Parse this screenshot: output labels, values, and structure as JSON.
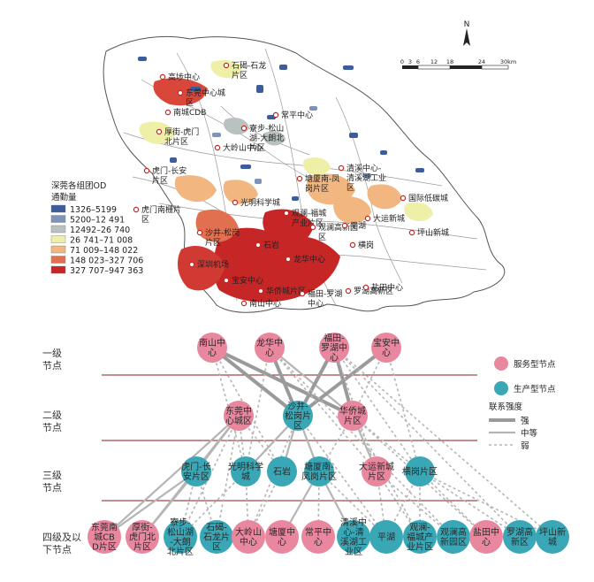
{
  "map": {
    "north_label": "N",
    "scale": {
      "ticks": [
        "0",
        "3",
        "6",
        "12",
        "18",
        "24",
        "30km"
      ]
    },
    "legend": {
      "title_line1": "深莞各组团OD",
      "title_line2": "通勤量",
      "items": [
        {
          "label": "1326–5199",
          "color": "#3e5c9a"
        },
        {
          "label": "5200–12 491",
          "color": "#7f93b7"
        },
        {
          "label": "12492–26 740",
          "color": "#b9c2c0"
        },
        {
          "label": "26 741–71 008",
          "color": "#eef0a8"
        },
        {
          "label": "71 009–148 022",
          "color": "#f2b681"
        },
        {
          "label": "148 023–327 706",
          "color": "#e07050"
        },
        {
          "label": "327 707–947 363",
          "color": "#c72626"
        }
      ]
    },
    "labels": [
      "高埗中心",
      "石碣-石龙片区",
      "东莞中心城区",
      "南城CDB",
      "常平中心",
      "厚街-虎门北片区",
      "寮步-松山湖-大朗北片区",
      "大岭山中心",
      "虎门-长安片区",
      "清溪中心-清溪湖工业区",
      "塘厦南-凤岗片区",
      "国际低碳城",
      "虎门南栅片区",
      "光明科学城",
      "观澜-福城产业片区",
      "观澜高新园区",
      "平湖",
      "大运新城",
      "坪山新城",
      "横岗",
      "沙井-松岗片区",
      "石岩",
      "深圳机场",
      "龙华中心",
      "宝安中心",
      "华侨城片区",
      "福田-罗湖中心",
      "罗湖高新区",
      "盐田中心",
      "南山中心"
    ]
  },
  "network": {
    "tiers": [
      "一级节点",
      "二级节点",
      "三级节点",
      "四级及以下节点"
    ],
    "legend": {
      "service_label": "服务型节点",
      "production_label": "生产型节点",
      "service_color": "#e8879e",
      "production_color": "#3aa7b6",
      "strength_title": "联系强度",
      "strong": "强",
      "medium": "中等",
      "weak": "弱"
    },
    "nodes": {
      "tier1": [
        {
          "id": "nanshan",
          "label": "南山中心",
          "type": "service"
        },
        {
          "id": "longhua",
          "label": "龙华中心",
          "type": "service"
        },
        {
          "id": "futian",
          "label": "福田-罗湖中心",
          "type": "service"
        },
        {
          "id": "baoan",
          "label": "宝安中心",
          "type": "service"
        }
      ],
      "tier2": [
        {
          "id": "dgcenter",
          "label": "东莞中心城区",
          "type": "service"
        },
        {
          "id": "shajing",
          "label": "沙井-松岗片区",
          "type": "production"
        },
        {
          "id": "huaqiao",
          "label": "华侨城片区",
          "type": "service"
        }
      ],
      "tier3": [
        {
          "id": "humen",
          "label": "虎门-长安片区",
          "type": "production"
        },
        {
          "id": "guangming",
          "label": "光明科学城",
          "type": "production"
        },
        {
          "id": "shiyan",
          "label": "石岩",
          "type": "production"
        },
        {
          "id": "tangxia_s",
          "label": "塘厦南-凤岗片区",
          "type": "production"
        },
        {
          "id": "dayun",
          "label": "大运新城片区",
          "type": "service"
        },
        {
          "id": "henggang",
          "label": "横岗片区",
          "type": "production"
        }
      ],
      "tier4": [
        {
          "id": "dgnc",
          "label": "东莞南城CBD片区",
          "type": "service"
        },
        {
          "id": "houjie",
          "label": "厚街-虎门北片区",
          "type": "service"
        },
        {
          "id": "liaobu",
          "label": "寮步-松山湖-大朗北片区",
          "type": "production"
        },
        {
          "id": "shijie",
          "label": "石碣-石龙片区",
          "type": "production"
        },
        {
          "id": "dalingshan",
          "label": "大岭山中心",
          "type": "service"
        },
        {
          "id": "tangxia",
          "label": "塘厦中心",
          "type": "service"
        },
        {
          "id": "changping",
          "label": "常平中心",
          "type": "service"
        },
        {
          "id": "qingxi",
          "label": "清溪中心-清溪湖工业区",
          "type": "production"
        },
        {
          "id": "pinghu",
          "label": "平湖",
          "type": "production"
        },
        {
          "id": "guanlan_fc",
          "label": "观澜-福城产业片区",
          "type": "production"
        },
        {
          "id": "guanlan_gx",
          "label": "观澜高新园区",
          "type": "production"
        },
        {
          "id": "yantian",
          "label": "盐田中心",
          "type": "service"
        },
        {
          "id": "luohu_gx",
          "label": "罗湖高新区",
          "type": "production"
        },
        {
          "id": "pingshan",
          "label": "坪山新城",
          "type": "production"
        }
      ]
    },
    "links": [
      {
        "from": "nanshan",
        "to": "shajing",
        "strength": "strong"
      },
      {
        "from": "nanshan",
        "to": "huaqiao",
        "strength": "strong"
      },
      {
        "from": "longhua",
        "to": "shajing",
        "strength": "strong"
      },
      {
        "from": "longhua",
        "to": "huaqiao",
        "strength": "medium"
      },
      {
        "from": "futian",
        "to": "shajing",
        "strength": "strong"
      },
      {
        "from": "futian",
        "to": "huaqiao",
        "strength": "strong"
      },
      {
        "from": "baoan",
        "to": "shajing",
        "strength": "strong"
      },
      {
        "from": "baoan",
        "to": "huaqiao",
        "strength": "weak"
      },
      {
        "from": "nanshan",
        "to": "guangming",
        "strength": "weak"
      },
      {
        "from": "longhua",
        "to": "dayun",
        "strength": "weak"
      },
      {
        "from": "futian",
        "to": "henggang",
        "strength": "weak"
      },
      {
        "from": "baoan",
        "to": "henggang",
        "strength": "weak"
      },
      {
        "from": "futian",
        "to": "dayun",
        "strength": "weak"
      },
      {
        "from": "longhua",
        "to": "guangming",
        "strength": "weak"
      },
      {
        "from": "nanshan",
        "to": "shiyan",
        "strength": "weak"
      },
      {
        "from": "dgcenter",
        "to": "humen",
        "strength": "medium"
      },
      {
        "from": "dgcenter",
        "to": "guangming",
        "strength": "weak"
      },
      {
        "from": "dgcenter",
        "to": "shiyan",
        "strength": "weak"
      },
      {
        "from": "shajing",
        "to": "guangming",
        "strength": "medium"
      },
      {
        "from": "shajing",
        "to": "shiyan",
        "strength": "medium"
      },
      {
        "from": "shajing",
        "to": "tangxia_s",
        "strength": "medium"
      },
      {
        "from": "huaqiao",
        "to": "dayun",
        "strength": "medium"
      },
      {
        "from": "huaqiao",
        "to": "henggang",
        "strength": "weak"
      },
      {
        "from": "huaqiao",
        "to": "tangxia_s",
        "strength": "weak"
      },
      {
        "from": "dgcenter",
        "to": "dgnc",
        "strength": "medium"
      },
      {
        "from": "dgcenter",
        "to": "houjie",
        "strength": "medium"
      },
      {
        "from": "dgcenter",
        "to": "liaobu",
        "strength": "weak"
      },
      {
        "from": "dgcenter",
        "to": "shijie",
        "strength": "weak"
      },
      {
        "from": "shajing",
        "to": "dalingshan",
        "strength": "weak"
      },
      {
        "from": "humen",
        "to": "dgnc",
        "strength": "medium"
      },
      {
        "from": "humen",
        "to": "houjie",
        "strength": "medium"
      },
      {
        "from": "humen",
        "to": "liaobu",
        "strength": "weak"
      },
      {
        "from": "humen",
        "to": "shijie",
        "strength": "weak"
      },
      {
        "from": "guangming",
        "to": "dalingshan",
        "strength": "weak"
      },
      {
        "from": "guangming",
        "to": "liaobu",
        "strength": "weak"
      },
      {
        "from": "shiyan",
        "to": "dalingshan",
        "strength": "weak"
      },
      {
        "from": "tangxia_s",
        "to": "tangxia",
        "strength": "medium"
      },
      {
        "from": "tangxia_s",
        "to": "changping",
        "strength": "weak"
      },
      {
        "from": "tangxia_s",
        "to": "qingxi",
        "strength": "medium"
      },
      {
        "from": "tangxia_s",
        "to": "pinghu",
        "strength": "weak"
      },
      {
        "from": "dayun",
        "to": "pinghu",
        "strength": "weak"
      },
      {
        "from": "dayun",
        "to": "guanlan_fc",
        "strength": "weak"
      },
      {
        "from": "dayun",
        "to": "guanlan_gx",
        "strength": "weak"
      },
      {
        "from": "henggang",
        "to": "pinghu",
        "strength": "weak"
      },
      {
        "from": "henggang",
        "to": "guanlan_fc",
        "strength": "weak"
      },
      {
        "from": "henggang",
        "to": "yantian",
        "strength": "weak"
      },
      {
        "from": "henggang",
        "to": "luohu_gx",
        "strength": "weak"
      },
      {
        "from": "henggang",
        "to": "pingshan",
        "strength": "weak"
      },
      {
        "from": "huaqiao",
        "to": "yantian",
        "strength": "weak"
      },
      {
        "from": "futian",
        "to": "luohu_gx",
        "strength": "weak"
      },
      {
        "from": "futian",
        "to": "pingshan",
        "strength": "weak"
      },
      {
        "from": "longhua",
        "to": "guanlan_gx",
        "strength": "weak"
      },
      {
        "from": "shajing",
        "to": "pinghu",
        "strength": "weak"
      },
      {
        "from": "huaqiao",
        "to": "guanlan_fc",
        "strength": "weak"
      }
    ]
  }
}
